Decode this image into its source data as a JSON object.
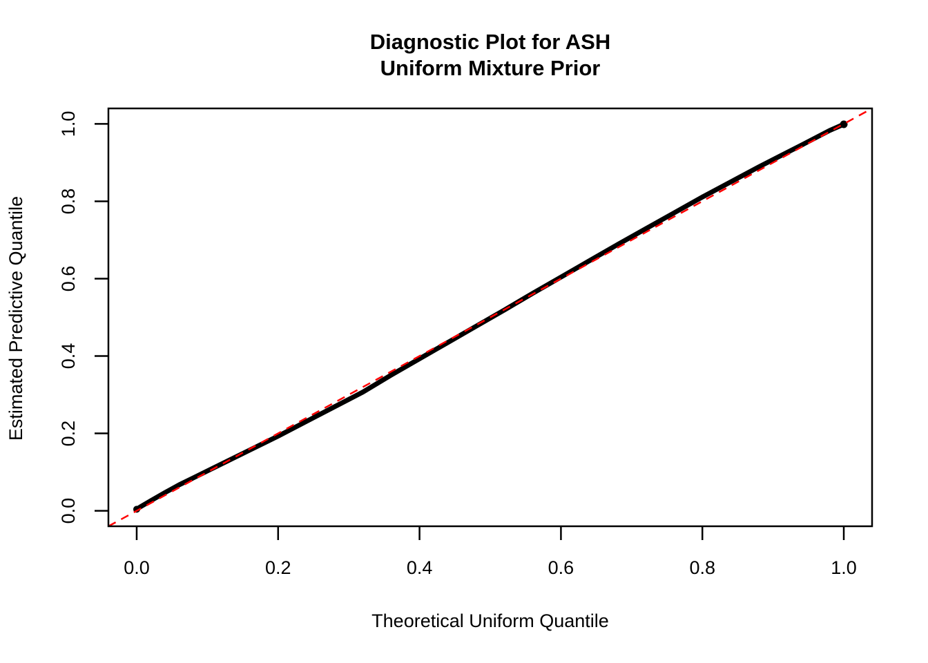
{
  "chart_data": {
    "type": "line",
    "subtype": "qq-diagnostic-plot",
    "title_lines": [
      "Diagnostic Plot for ASH",
      "Uniform Mixture Prior"
    ],
    "xlabel": "Theoretical Uniform Quantile",
    "ylabel": "Estimated Predictive Quantile",
    "xlim": [
      -0.04,
      1.04
    ],
    "ylim": [
      -0.04,
      1.04
    ],
    "x_ticks": [
      0.0,
      0.2,
      0.4,
      0.6,
      0.8,
      1.0
    ],
    "y_ticks": [
      0.0,
      0.2,
      0.4,
      0.6,
      0.8,
      1.0
    ],
    "x_tick_labels": [
      "0.0",
      "0.2",
      "0.4",
      "0.6",
      "0.8",
      "1.0"
    ],
    "y_tick_labels": [
      "0.0",
      "0.2",
      "0.4",
      "0.6",
      "0.8",
      "1.0"
    ],
    "grid": false,
    "legend": "none",
    "series": [
      {
        "name": "estimated-vs-theoretical-quantiles",
        "color": "#000000",
        "line_width": 7,
        "points": [
          [
            0.0,
            0.004
          ],
          [
            0.005,
            0.01
          ],
          [
            0.02,
            0.026
          ],
          [
            0.04,
            0.047
          ],
          [
            0.06,
            0.067
          ],
          [
            0.08,
            0.085
          ],
          [
            0.1,
            0.103
          ],
          [
            0.13,
            0.13
          ],
          [
            0.16,
            0.157
          ],
          [
            0.2,
            0.193
          ],
          [
            0.24,
            0.231
          ],
          [
            0.28,
            0.269
          ],
          [
            0.32,
            0.307
          ],
          [
            0.36,
            0.351
          ],
          [
            0.4,
            0.393
          ],
          [
            0.44,
            0.435
          ],
          [
            0.48,
            0.477
          ],
          [
            0.52,
            0.519
          ],
          [
            0.56,
            0.562
          ],
          [
            0.6,
            0.604
          ],
          [
            0.64,
            0.646
          ],
          [
            0.68,
            0.688
          ],
          [
            0.72,
            0.729
          ],
          [
            0.76,
            0.77
          ],
          [
            0.8,
            0.811
          ],
          [
            0.84,
            0.85
          ],
          [
            0.88,
            0.889
          ],
          [
            0.91,
            0.917
          ],
          [
            0.94,
            0.945
          ],
          [
            0.96,
            0.964
          ],
          [
            0.98,
            0.983
          ],
          [
            0.99,
            0.991
          ],
          [
            1.0,
            0.999
          ]
        ]
      }
    ],
    "reference_line": {
      "name": "y-equals-x-line",
      "style": "dashed",
      "color": "#FF0000",
      "from": [
        -0.04,
        -0.04
      ],
      "to": [
        1.04,
        1.04
      ]
    }
  },
  "colors": {
    "background": "#FFFFFF",
    "axis": "#000000",
    "curve": "#000000",
    "reference": "#FF0000"
  }
}
